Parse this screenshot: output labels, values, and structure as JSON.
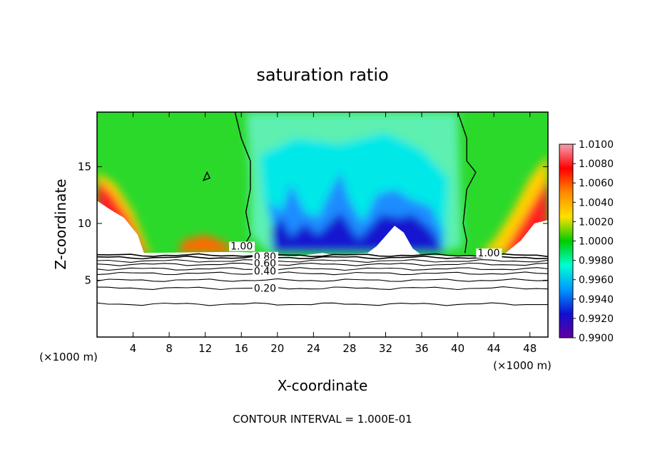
{
  "chart_data": {
    "type": "heatmap",
    "title": "saturation ratio",
    "xlabel": "X-coordinate",
    "ylabel": "Z-coordinate",
    "x_unit_label": "(×1000 m)",
    "x_ticks": [
      4,
      8,
      12,
      16,
      20,
      24,
      28,
      32,
      36,
      40,
      44,
      48
    ],
    "y_ticks": [
      5,
      10,
      15
    ],
    "xlim": [
      0,
      50
    ],
    "ylim": [
      0,
      19.8
    ],
    "grid": false,
    "footer": "CONTOUR INTERVAL = 1.000E-01",
    "colorbar": {
      "placement": "right",
      "ticks": [
        "1.0100",
        "1.0080",
        "1.0060",
        "1.0040",
        "1.0020",
        "1.0000",
        "0.9980",
        "0.9960",
        "0.9940",
        "0.9920",
        "0.9900"
      ],
      "range": [
        0.99,
        1.01
      ],
      "colors": [
        "#f7a0b0",
        "#ff0000",
        "#ff8a00",
        "#ffe000",
        "#00cc00",
        "#00ffd0",
        "#0099ff",
        "#1010d0",
        "#6000a0"
      ]
    },
    "contour_labels": [
      {
        "text": "1.00",
        "x": 14.8,
        "y": 7.7
      },
      {
        "text": "0.80",
        "x": 17.4,
        "y": 6.8
      },
      {
        "text": "0.60",
        "x": 17.4,
        "y": 6.2
      },
      {
        "text": "0.40",
        "x": 17.4,
        "y": 5.5
      },
      {
        "text": "0.20",
        "x": 17.4,
        "y": 4.0
      },
      {
        "text": "1.00",
        "x": 42.2,
        "y": 7.1
      }
    ],
    "white_region_top": [
      [
        0,
        12.0
      ],
      [
        1.5,
        11.2
      ],
      [
        3.0,
        10.5
      ],
      [
        4.5,
        9.0
      ],
      [
        5.2,
        7.4
      ],
      [
        15.5,
        7.5
      ],
      [
        18.0,
        7.4
      ],
      [
        18.6,
        7.2
      ],
      [
        22.0,
        7.1
      ],
      [
        25.0,
        7.4
      ],
      [
        26.5,
        7.2
      ],
      [
        30.0,
        7.4
      ],
      [
        31.0,
        8.0
      ],
      [
        33.0,
        9.8
      ],
      [
        34.0,
        9.2
      ],
      [
        35.0,
        7.8
      ],
      [
        36.0,
        7.2
      ],
      [
        40.0,
        7.2
      ],
      [
        45.0,
        7.2
      ],
      [
        47.0,
        8.5
      ],
      [
        48.5,
        10.0
      ],
      [
        50.0,
        10.3
      ]
    ],
    "contour_1_00": [
      {
        "points": [
          [
            15.3,
            19.8
          ],
          [
            16.0,
            17.5
          ],
          [
            17.0,
            15.5
          ],
          [
            17.0,
            13.0
          ],
          [
            16.5,
            11.0
          ],
          [
            17.0,
            9.0
          ],
          [
            16.5,
            8.3
          ],
          [
            15.6,
            7.8
          ]
        ]
      },
      {
        "points": [
          [
            40.0,
            19.8
          ],
          [
            41.0,
            17.5
          ],
          [
            41.0,
            15.5
          ],
          [
            42.0,
            14.5
          ],
          [
            41.0,
            13.0
          ],
          [
            40.6,
            10.0
          ],
          [
            41.0,
            8.5
          ],
          [
            40.8,
            7.4
          ]
        ]
      },
      {
        "points": [
          [
            11.8,
            13.8
          ],
          [
            12.2,
            14.5
          ],
          [
            12.5,
            14.0
          ],
          [
            11.8,
            13.8
          ]
        ],
        "closed": true
      }
    ],
    "lower_contours": [
      {
        "level": 0.9,
        "z": 7.2
      },
      {
        "level": 0.8,
        "z": 7.0
      },
      {
        "level": 0.7,
        "z": 6.7
      },
      {
        "level": 0.6,
        "z": 6.4
      },
      {
        "level": 0.5,
        "z": 6.0
      },
      {
        "level": 0.4,
        "z": 5.6
      },
      {
        "level": 0.3,
        "z": 5.0
      },
      {
        "level": 0.2,
        "z": 4.3
      },
      {
        "level": 0.1,
        "z": 2.9
      }
    ]
  }
}
